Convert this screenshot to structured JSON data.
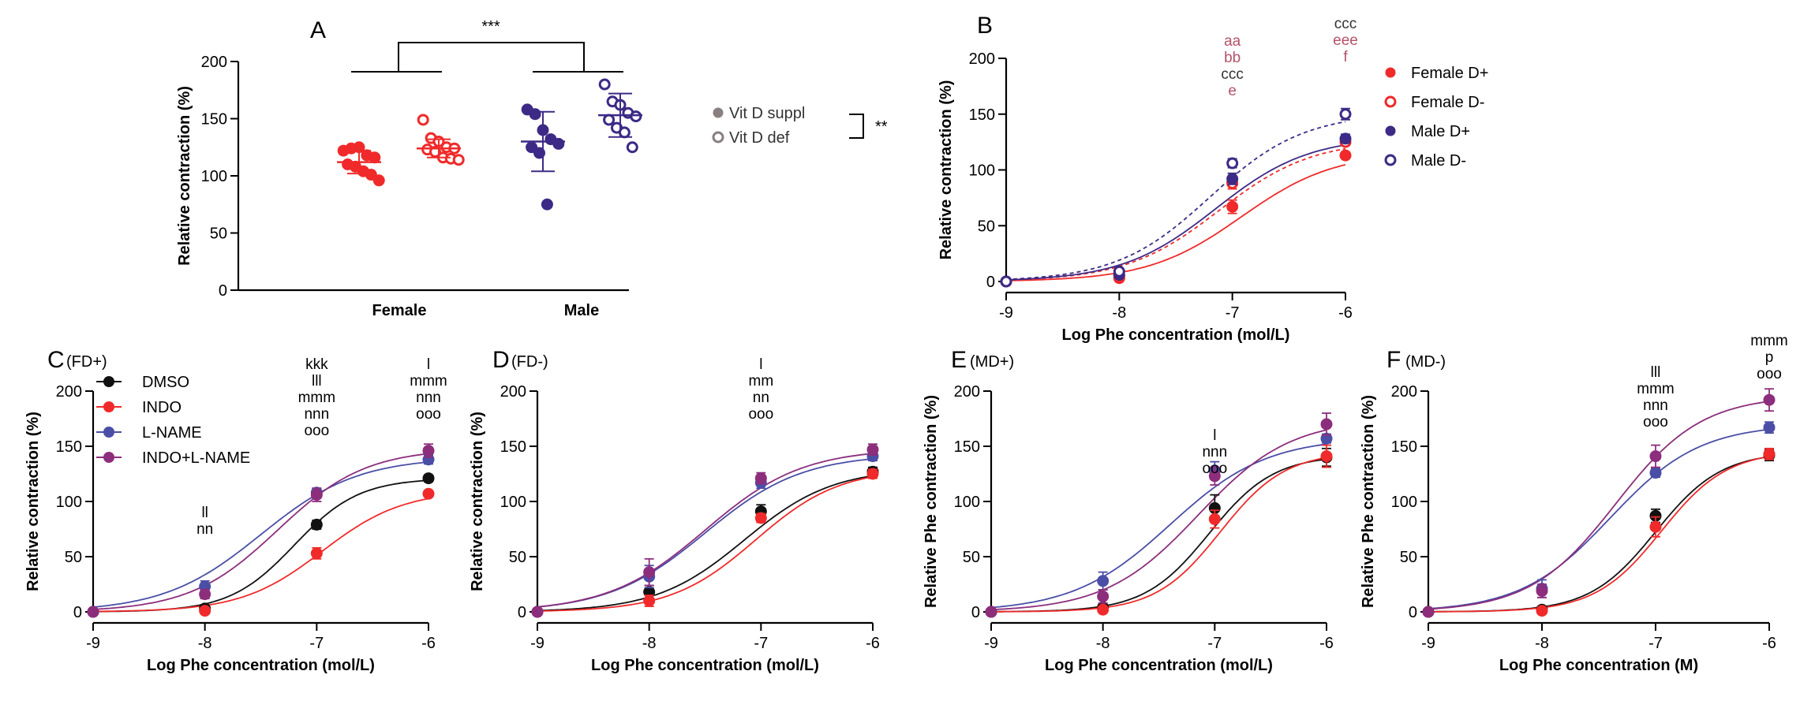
{
  "colors": {
    "female_supp": "#f02a2a",
    "female_def": "#f02a2a",
    "male_supp": "#3d2a86",
    "male_def": "#3d2a86",
    "dmso": "#111111",
    "indo": "#f02a2a",
    "lname": "#4a4ea6",
    "indolname": "#8c2e7c",
    "annot_red": "#b4536a",
    "annot_dark": "#333333",
    "legend_grey": "#8a7f7f",
    "axis": "#000000"
  },
  "chart_data": [
    {
      "id": "A",
      "type": "scatter",
      "panel_label": "A",
      "ylabel": "Relative contraction (%)",
      "ylim": [
        0,
        200
      ],
      "yticks": [
        0,
        50,
        100,
        150,
        200
      ],
      "group_labels": [
        "Female",
        "Male"
      ],
      "significance_top": "***",
      "significance_legend": "**",
      "legend": [
        "Vit D suppl",
        "Vit D def"
      ],
      "groups": [
        {
          "name": "Female Vit D suppl",
          "sex": "Female",
          "filled": true,
          "mean": 112,
          "sd": 10,
          "values": [
            122,
            124,
            125,
            118,
            116,
            110,
            108,
            104,
            101,
            96
          ]
        },
        {
          "name": "Female Vit D def",
          "sex": "Female",
          "filled": false,
          "mean": 124,
          "sd": 8,
          "values": [
            149,
            133,
            130,
            125,
            124,
            123,
            121,
            116,
            115,
            114
          ]
        },
        {
          "name": "Male Vit D suppl",
          "sex": "Male",
          "filled": true,
          "mean": 130,
          "sd": 26,
          "values": [
            158,
            154,
            140,
            132,
            128,
            125,
            120,
            75
          ]
        },
        {
          "name": "Male Vit D def",
          "sex": "Male",
          "filled": false,
          "mean": 153,
          "sd": 19,
          "values": [
            180,
            165,
            162,
            155,
            152,
            149,
            142,
            138,
            125
          ]
        }
      ]
    },
    {
      "id": "B",
      "type": "line",
      "panel_label": "B",
      "xlabel": "Log Phe concentration (mol/L)",
      "ylabel": "Relative contraction (%)",
      "xlim": [
        -9,
        -6
      ],
      "ylim": [
        0,
        200
      ],
      "xticks": [
        -9,
        -8,
        -7,
        -6
      ],
      "yticks": [
        0,
        50,
        100,
        150,
        200
      ],
      "x": [
        -9,
        -8,
        -7,
        -6
      ],
      "series": [
        {
          "name": "Female D+",
          "key": "female_supp",
          "filled": true,
          "dashed": false,
          "values": [
            0,
            3,
            67,
            113
          ],
          "sem": [
            1,
            1,
            6,
            2
          ],
          "ec50": -6.92,
          "top": 116,
          "slope": 1.05
        },
        {
          "name": "Female D-",
          "key": "female_def",
          "filled": false,
          "dashed": true,
          "values": [
            0,
            5,
            88,
            125
          ],
          "sem": [
            1,
            1,
            5,
            3
          ],
          "ec50": -7.12,
          "top": 127,
          "slope": 1.05
        },
        {
          "name": "Male D+",
          "key": "male_supp",
          "filled": true,
          "dashed": false,
          "values": [
            0,
            6,
            92,
            128
          ],
          "sem": [
            1,
            1,
            5,
            4
          ],
          "ec50": -7.15,
          "top": 130,
          "slope": 1.05
        },
        {
          "name": "Male D-",
          "key": "male_def",
          "filled": false,
          "dashed": true,
          "values": [
            0,
            9,
            106,
            150
          ],
          "sem": [
            1,
            2,
            4,
            5
          ],
          "ec50": -7.2,
          "top": 151,
          "slope": 1.05
        }
      ],
      "annotations": [
        {
          "x": -7,
          "lines": [
            {
              "text": "aa",
              "color": "annot_red"
            },
            {
              "text": "bb",
              "color": "annot_red"
            },
            {
              "text": "ccc",
              "color": "annot_dark"
            },
            {
              "text": "e",
              "color": "annot_red"
            }
          ]
        },
        {
          "x": -6,
          "lines": [
            {
              "text": "ccc",
              "color": "annot_dark"
            },
            {
              "text": "eee",
              "color": "annot_red"
            },
            {
              "text": "f",
              "color": "annot_red"
            }
          ]
        }
      ]
    },
    {
      "id": "C",
      "type": "line",
      "panel_label": "C",
      "subtitle": "(FD+)",
      "xlabel": "Log Phe concentration (mol/L)",
      "ylabel": "Relative  contraction (%)",
      "xlim": [
        -9,
        -6
      ],
      "ylim": [
        0,
        200
      ],
      "xticks": [
        -9,
        -8,
        -7,
        -6
      ],
      "yticks": [
        0,
        50,
        100,
        150,
        200
      ],
      "x": [
        -9,
        -8,
        -7,
        -6
      ],
      "legend": [
        "DMSO",
        "INDO",
        "L-NAME",
        "INDO+L-NAME"
      ],
      "series": [
        {
          "name": "DMSO",
          "key": "dmso",
          "values": [
            0,
            3,
            79,
            121
          ],
          "sem": [
            1,
            1,
            4,
            3
          ],
          "ec50": -7.2,
          "top": 121,
          "slope": 1.5
        },
        {
          "name": "INDO",
          "key": "indo",
          "values": [
            0,
            1,
            53,
            107
          ],
          "sem": [
            1,
            1,
            5,
            2
          ],
          "ec50": -6.95,
          "top": 110,
          "slope": 1.2
        },
        {
          "name": "L-NAME",
          "key": "lname",
          "values": [
            0,
            23,
            108,
            138
          ],
          "sem": [
            1,
            5,
            4,
            4
          ],
          "ec50": -7.5,
          "top": 140,
          "slope": 1.0
        },
        {
          "name": "INDO+L-NAME",
          "key": "indolname",
          "values": [
            0,
            16,
            106,
            146
          ],
          "sem": [
            1,
            4,
            6,
            6
          ],
          "ec50": -7.35,
          "top": 148,
          "slope": 1.1
        }
      ],
      "annotations": [
        {
          "x": -8,
          "lines": [
            {
              "text": "ll"
            },
            {
              "text": "nn"
            }
          ]
        },
        {
          "x": -7,
          "lines": [
            {
              "text": "kkk"
            },
            {
              "text": "lll"
            },
            {
              "text": "mmm"
            },
            {
              "text": "nnn"
            },
            {
              "text": "ooo"
            }
          ]
        },
        {
          "x": -6,
          "lines": [
            {
              "text": "l"
            },
            {
              "text": "mmm"
            },
            {
              "text": "nnn"
            },
            {
              "text": "ooo"
            }
          ]
        }
      ]
    },
    {
      "id": "D",
      "type": "line",
      "panel_label": "D",
      "subtitle": "(FD-)",
      "xlabel": "Log Phe concentration (mol/L)",
      "ylabel": "Relative contraction (%)",
      "xlim": [
        -9,
        -6
      ],
      "ylim": [
        0,
        200
      ],
      "xticks": [
        -9,
        -8,
        -7,
        -6
      ],
      "yticks": [
        0,
        50,
        100,
        150,
        200
      ],
      "x": [
        -9,
        -8,
        -7,
        -6
      ],
      "series": [
        {
          "name": "DMSO",
          "key": "dmso",
          "values": [
            0,
            18,
            91,
            127
          ],
          "sem": [
            1,
            6,
            6,
            4
          ],
          "ec50": -7.15,
          "top": 130,
          "slope": 1.1
        },
        {
          "name": "INDO",
          "key": "indo",
          "values": [
            0,
            10,
            85,
            125
          ],
          "sem": [
            1,
            5,
            4,
            4
          ],
          "ec50": -7.05,
          "top": 130,
          "slope": 1.15
        },
        {
          "name": "L-NAME",
          "key": "lname",
          "values": [
            0,
            32,
            117,
            141
          ],
          "sem": [
            1,
            10,
            5,
            4
          ],
          "ec50": -7.5,
          "top": 143,
          "slope": 1.0
        },
        {
          "name": "INDO+L-NAME",
          "key": "indolname",
          "values": [
            0,
            36,
            121,
            147
          ],
          "sem": [
            1,
            12,
            5,
            5
          ],
          "ec50": -7.5,
          "top": 148,
          "slope": 1.0
        }
      ],
      "annotations": [
        {
          "x": -7,
          "lines": [
            {
              "text": "l"
            },
            {
              "text": "mm"
            },
            {
              "text": "nn"
            },
            {
              "text": "ooo"
            }
          ]
        }
      ]
    },
    {
      "id": "E",
      "type": "line",
      "panel_label": "E",
      "subtitle": "(MD+)",
      "xlabel": "Log Phe concentration (mol/L)",
      "ylabel": "Relative Phe contraction (%)",
      "xlim": [
        -9,
        -6
      ],
      "ylim": [
        0,
        200
      ],
      "xticks": [
        -9,
        -8,
        -7,
        -6
      ],
      "yticks": [
        0,
        50,
        100,
        150,
        200
      ],
      "x": [
        -9,
        -8,
        -7,
        -6
      ],
      "series": [
        {
          "name": "DMSO",
          "key": "dmso",
          "values": [
            0,
            4,
            94,
            140
          ],
          "sem": [
            1,
            1,
            12,
            8
          ],
          "ec50": -7.05,
          "top": 142,
          "slope": 1.5
        },
        {
          "name": "INDO",
          "key": "indo",
          "values": [
            0,
            2,
            84,
            141
          ],
          "sem": [
            1,
            1,
            8,
            10
          ],
          "ec50": -6.95,
          "top": 145,
          "slope": 1.5
        },
        {
          "name": "L-NAME",
          "key": "lname",
          "values": [
            0,
            28,
            128,
            157
          ],
          "sem": [
            1,
            8,
            8,
            4
          ],
          "ec50": -7.4,
          "top": 158,
          "slope": 1.0
        },
        {
          "name": "INDO+L-NAME",
          "key": "indolname",
          "values": [
            0,
            14,
            123,
            170
          ],
          "sem": [
            1,
            6,
            8,
            10
          ],
          "ec50": -7.15,
          "top": 175,
          "slope": 1.05
        }
      ],
      "annotations": [
        {
          "x": -7,
          "lines": [
            {
              "text": "l"
            },
            {
              "text": "nnn"
            },
            {
              "text": "ooo"
            }
          ]
        }
      ]
    },
    {
      "id": "F",
      "type": "line",
      "panel_label": "F",
      "subtitle": "(MD-)",
      "xlabel": "Log Phe concentration (M)",
      "ylabel": "Relative Phe contraction (%)",
      "xlim": [
        -9,
        -6
      ],
      "ylim": [
        0,
        200
      ],
      "xticks": [
        -9,
        -8,
        -7,
        -6
      ],
      "yticks": [
        0,
        50,
        100,
        150,
        200
      ],
      "x": [
        -9,
        -8,
        -7,
        -6
      ],
      "series": [
        {
          "name": "DMSO",
          "key": "dmso",
          "values": [
            0,
            2,
            87,
            142
          ],
          "sem": [
            1,
            1,
            6,
            5
          ],
          "ec50": -7.0,
          "top": 145,
          "slope": 1.5
        },
        {
          "name": "INDO",
          "key": "indo",
          "values": [
            0,
            1,
            77,
            143
          ],
          "sem": [
            1,
            1,
            9,
            5
          ],
          "ec50": -6.95,
          "top": 146,
          "slope": 1.5
        },
        {
          "name": "L-NAME",
          "key": "lname",
          "values": [
            0,
            21,
            126,
            167
          ],
          "sem": [
            1,
            8,
            4,
            5
          ],
          "ec50": -7.4,
          "top": 170,
          "slope": 1.1
        },
        {
          "name": "INDO+L-NAME",
          "key": "indolname",
          "values": [
            0,
            19,
            141,
            192
          ],
          "sem": [
            1,
            6,
            10,
            10
          ],
          "ec50": -7.35,
          "top": 196,
          "slope": 1.15
        }
      ],
      "annotations": [
        {
          "x": -7,
          "lines": [
            {
              "text": "lll"
            },
            {
              "text": "mmm"
            },
            {
              "text": "nnn"
            },
            {
              "text": "ooo"
            }
          ]
        },
        {
          "x": -6,
          "lines": [
            {
              "text": "mmm"
            },
            {
              "text": "p"
            },
            {
              "text": "ooo"
            }
          ]
        }
      ]
    }
  ]
}
